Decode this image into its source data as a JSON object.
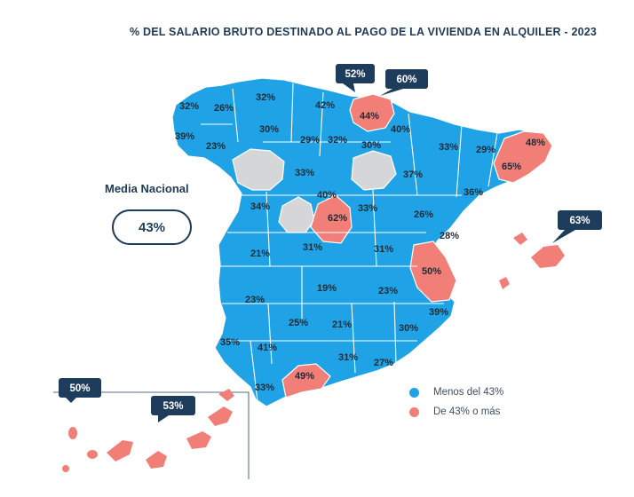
{
  "title": "% DEL SALARIO BRUTO DESTINADO AL PAGO DE LA VIVIENDA EN ALQUILER - 2023",
  "media_nacional": {
    "label": "Media Nacional",
    "value": "43%"
  },
  "legend": [
    {
      "label": "Menos del 43%",
      "color": "#1fa3e6"
    },
    {
      "label": "De 43% o más",
      "color": "#f17f78"
    }
  ],
  "colors": {
    "below": "#1fa3e6",
    "above": "#f17f78",
    "no_data": "#d4d6d8",
    "callout": "#1e3c5c"
  },
  "provinces": [
    {
      "name": "A Coruña",
      "value": "32%",
      "class": "below"
    },
    {
      "name": "Lugo",
      "value": "26%",
      "class": "below"
    },
    {
      "name": "Asturias",
      "value": "32%",
      "class": "below"
    },
    {
      "name": "Cantabria",
      "value": "42%",
      "class": "below"
    },
    {
      "name": "Bizkaia",
      "value": "44%",
      "class": "above"
    },
    {
      "name": "Pontevedra",
      "value": "39%",
      "class": "below"
    },
    {
      "name": "Ourense",
      "value": "23%",
      "class": "below"
    },
    {
      "name": "León",
      "value": "30%",
      "class": "below"
    },
    {
      "name": "Palencia",
      "value": "29%",
      "class": "below"
    },
    {
      "name": "Burgos",
      "value": "32%",
      "class": "below"
    },
    {
      "name": "La Rioja",
      "value": "30%",
      "class": "below"
    },
    {
      "name": "Navarra",
      "value": "40%",
      "class": "below"
    },
    {
      "name": "Huesca",
      "value": "33%",
      "class": "below"
    },
    {
      "name": "Lleida",
      "value": "29%",
      "class": "below"
    },
    {
      "name": "Girona",
      "value": "48%",
      "class": "above"
    },
    {
      "name": "Barcelona",
      "value": "65%",
      "class": "above"
    },
    {
      "name": "Valladolid",
      "value": "33%",
      "class": "below"
    },
    {
      "name": "Zaragoza",
      "value": "37%",
      "class": "below"
    },
    {
      "name": "Tarragona",
      "value": "36%",
      "class": "below"
    },
    {
      "name": "Segovia",
      "value": "40%",
      "class": "below"
    },
    {
      "name": "Cáceres",
      "value": "34%",
      "class": "below"
    },
    {
      "name": "Madrid",
      "value": "62%",
      "class": "above"
    },
    {
      "name": "Guadalajara",
      "value": "33%",
      "class": "below"
    },
    {
      "name": "Teruel",
      "value": "26%",
      "class": "below"
    },
    {
      "name": "Castellón",
      "value": "28%",
      "class": "below"
    },
    {
      "name": "Badajoz",
      "value": "21%",
      "class": "below"
    },
    {
      "name": "Toledo",
      "value": "31%",
      "class": "below"
    },
    {
      "name": "Cuenca",
      "value": "31%",
      "class": "below"
    },
    {
      "name": "Valencia",
      "value": "50%",
      "class": "above"
    },
    {
      "name": "Ciudad Real",
      "value": "19%",
      "class": "below"
    },
    {
      "name": "Albacete",
      "value": "23%",
      "class": "below"
    },
    {
      "name": "Alicante",
      "value": "39%",
      "class": "below"
    },
    {
      "name": "Huelva-north",
      "value": "23%",
      "class": "below"
    },
    {
      "name": "Córdoba",
      "value": "25%",
      "class": "below"
    },
    {
      "name": "Jaén",
      "value": "21%",
      "class": "below"
    },
    {
      "name": "Murcia",
      "value": "30%",
      "class": "below"
    },
    {
      "name": "Huelva",
      "value": "35%",
      "class": "below"
    },
    {
      "name": "Sevilla",
      "value": "41%",
      "class": "below"
    },
    {
      "name": "Granada",
      "value": "31%",
      "class": "below"
    },
    {
      "name": "Almería",
      "value": "27%",
      "class": "below"
    },
    {
      "name": "Cádiz",
      "value": "33%",
      "class": "below"
    },
    {
      "name": "Málaga",
      "value": "49%",
      "class": "above"
    }
  ],
  "callouts": [
    {
      "name": "Gipuzkoa",
      "value": "52%"
    },
    {
      "name": "Álava",
      "value": "60%"
    },
    {
      "name": "Illes Balears",
      "value": "63%"
    },
    {
      "name": "Las Palmas",
      "value": "50%"
    },
    {
      "name": "Santa Cruz de Tenerife",
      "value": "53%"
    }
  ]
}
